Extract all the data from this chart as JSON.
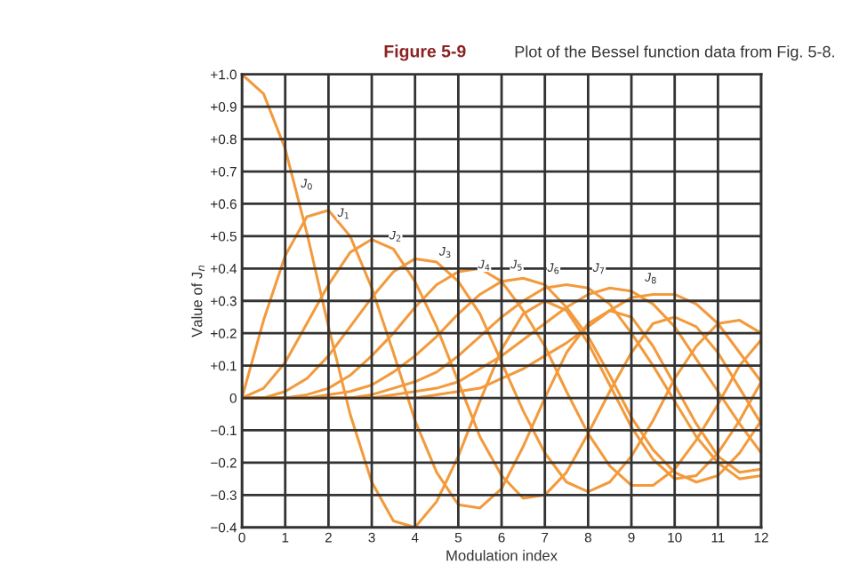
{
  "chart_data": {
    "type": "line",
    "title": "Figure 5-9",
    "subtitle": "Plot of the Bessel function data from Fig. 5-8.",
    "xlabel": "Modulation index",
    "ylabel": "Value of J$_{n}$",
    "x": [
      0,
      0.5,
      1,
      1.5,
      2,
      2.5,
      3,
      3.5,
      4,
      4.5,
      5,
      5.5,
      6,
      6.5,
      7,
      7.5,
      8,
      8.5,
      9,
      9.5,
      10,
      10.5,
      11,
      11.5,
      12
    ],
    "series": [
      {
        "color": "#f39a3c",
        "values": [
          1.0,
          0.94,
          0.77,
          0.51,
          0.22,
          -0.05,
          -0.26,
          -0.38,
          -0.4,
          -0.32,
          -0.18,
          -0.01,
          0.15,
          0.26,
          0.3,
          0.27,
          0.17,
          0.04,
          -0.09,
          -0.19,
          -0.25,
          -0.24,
          -0.17,
          -0.07,
          0.05
        ]
      },
      {
        "color": "#f39a3c",
        "values": [
          0,
          0.24,
          0.44,
          0.56,
          0.58,
          0.5,
          0.34,
          0.14,
          -0.07,
          -0.23,
          -0.33,
          -0.34,
          -0.28,
          -0.15,
          0.0,
          0.14,
          0.23,
          0.27,
          0.25,
          0.16,
          0.04,
          -0.08,
          -0.18,
          -0.23,
          -0.22
        ]
      },
      {
        "color": "#f39a3c",
        "values": [
          0,
          0.03,
          0.11,
          0.23,
          0.35,
          0.45,
          0.49,
          0.46,
          0.36,
          0.22,
          0.05,
          -0.12,
          -0.24,
          -0.31,
          -0.3,
          -0.23,
          -0.11,
          0.02,
          0.14,
          0.23,
          0.25,
          0.22,
          0.14,
          0.03,
          -0.08
        ]
      },
      {
        "color": "#f39a3c",
        "values": [
          0,
          0.0,
          0.02,
          0.06,
          0.13,
          0.22,
          0.31,
          0.39,
          0.43,
          0.42,
          0.36,
          0.26,
          0.11,
          -0.04,
          -0.17,
          -0.26,
          -0.29,
          -0.26,
          -0.18,
          -0.07,
          0.06,
          0.16,
          0.23,
          0.24,
          0.2
        ]
      },
      {
        "color": "#f39a3c",
        "values": [
          0,
          0.0,
          0.0,
          0.01,
          0.03,
          0.07,
          0.13,
          0.2,
          0.28,
          0.35,
          0.39,
          0.4,
          0.36,
          0.27,
          0.16,
          0.02,
          -0.11,
          -0.21,
          -0.27,
          -0.27,
          -0.22,
          -0.13,
          -0.02,
          0.1,
          0.18
        ]
      },
      {
        "color": "#f39a3c",
        "values": [
          0,
          0.0,
          0.0,
          0.0,
          0.01,
          0.02,
          0.04,
          0.08,
          0.13,
          0.19,
          0.26,
          0.32,
          0.36,
          0.37,
          0.35,
          0.28,
          0.19,
          0.07,
          -0.06,
          -0.16,
          -0.23,
          -0.26,
          -0.24,
          -0.17,
          -0.07
        ]
      },
      {
        "color": "#f39a3c",
        "values": [
          0,
          0.0,
          0.0,
          0.0,
          0.0,
          0.0,
          0.01,
          0.03,
          0.05,
          0.08,
          0.13,
          0.19,
          0.25,
          0.3,
          0.34,
          0.35,
          0.34,
          0.29,
          0.2,
          0.1,
          -0.01,
          -0.12,
          -0.2,
          -0.25,
          -0.24
        ]
      },
      {
        "color": "#f39a3c",
        "values": [
          0,
          0.0,
          0.0,
          0.0,
          0.0,
          0.0,
          0.0,
          0.01,
          0.02,
          0.03,
          0.05,
          0.09,
          0.13,
          0.18,
          0.23,
          0.28,
          0.32,
          0.34,
          0.33,
          0.29,
          0.22,
          0.12,
          0.02,
          -0.08,
          -0.17
        ]
      },
      {
        "color": "#f39a3c",
        "values": [
          0,
          0.0,
          0.0,
          0.0,
          0.0,
          0.0,
          0.0,
          0.0,
          0.0,
          0.01,
          0.02,
          0.03,
          0.06,
          0.09,
          0.13,
          0.17,
          0.22,
          0.27,
          0.31,
          0.32,
          0.32,
          0.29,
          0.23,
          0.14,
          0.05
        ]
      }
    ],
    "annotations": [
      {
        "text": "J$_{0}$",
        "x": 1.5,
        "y": 0.66
      },
      {
        "text": "J$_{1}$",
        "x": 2.35,
        "y": 0.57
      },
      {
        "text": "J$_{2}$",
        "x": 3.55,
        "y": 0.5
      },
      {
        "text": "J$_{3}$",
        "x": 4.7,
        "y": 0.45
      },
      {
        "text": "J$_{4}$",
        "x": 5.6,
        "y": 0.41
      },
      {
        "text": "J$_{5}$",
        "x": 6.35,
        "y": 0.41
      },
      {
        "text": "J$_{6}$",
        "x": 7.2,
        "y": 0.4
      },
      {
        "text": "J$_{7}$",
        "x": 8.25,
        "y": 0.4
      },
      {
        "text": "J$_{8}$",
        "x": 9.45,
        "y": 0.37
      }
    ],
    "xlim": [
      0,
      12
    ],
    "ylim": [
      -0.4,
      1.0
    ],
    "xticks": [
      0,
      1,
      2,
      3,
      4,
      5,
      6,
      7,
      8,
      9,
      10,
      11,
      12
    ],
    "yticks": [
      {
        "value": -0.4,
        "label": "−0.4"
      },
      {
        "value": -0.3,
        "label": "−0.3"
      },
      {
        "value": -0.2,
        "label": "−0.2"
      },
      {
        "value": -0.1,
        "label": "−0.1"
      },
      0,
      {
        "value": 0.1,
        "label": "+0.1"
      },
      {
        "value": 0.2,
        "label": "+0.2"
      },
      {
        "value": 0.3,
        "label": "+0.3"
      },
      {
        "value": 0.4,
        "label": "+0.4"
      },
      {
        "value": 0.5,
        "label": "+0.5"
      },
      {
        "value": 0.6,
        "label": "+0.6"
      },
      {
        "value": 0.7,
        "label": "+0.7"
      },
      {
        "value": 0.8,
        "label": "+0.8"
      },
      {
        "value": 0.9,
        "label": "+0.9"
      },
      {
        "value": 1.0,
        "label": "+1.0"
      }
    ],
    "grid": true,
    "marker": "none",
    "line_style": "solid"
  }
}
